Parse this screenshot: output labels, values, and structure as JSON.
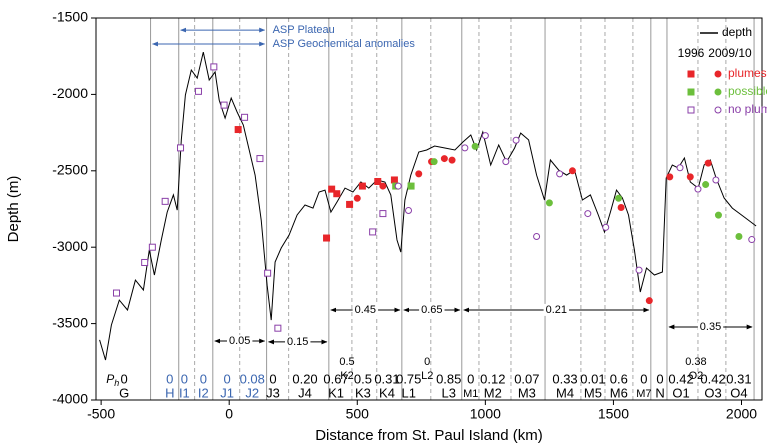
{
  "chart_data": {
    "type": "line",
    "x_label": "Distance from St. Paul Island (km)",
    "y_label": "Depth (m)",
    "xlim": [
      -520,
      2080
    ],
    "ylim": [
      -4000,
      -1500
    ],
    "xticks": [
      -500,
      0,
      500,
      1000,
      1500,
      2000
    ],
    "yticks": [
      -4000,
      -3500,
      -3000,
      -2500,
      -2000,
      -1500
    ],
    "series": [
      {
        "name": "depth",
        "color": "#000000",
        "x": [
          -506,
          -483,
          -460,
          -429,
          -397,
          -366,
          -335,
          -312,
          -292,
          -265,
          -242,
          -218,
          -203,
          -187,
          -171,
          -148,
          -125,
          -101,
          -78,
          -55,
          -39,
          -16,
          8,
          31,
          55,
          78,
          101,
          125,
          148,
          164,
          179,
          203,
          234,
          265,
          296,
          327,
          351,
          374,
          397,
          421,
          452,
          483,
          514,
          545,
          577,
          608,
          631,
          655,
          670,
          686,
          709,
          740,
          771,
          802,
          842,
          881,
          912,
          943,
          966,
          990,
          1021,
          1052,
          1083,
          1114,
          1138,
          1169,
          1200,
          1231,
          1254,
          1286,
          1317,
          1348,
          1379,
          1410,
          1441,
          1465,
          1488,
          1512,
          1535,
          1559,
          1582,
          1605,
          1629,
          1660,
          1691,
          1706,
          1730,
          1753,
          1777,
          1800,
          1831,
          1854,
          1878,
          1901,
          1932,
          1964,
          1995,
          2026,
          2057
        ],
        "values": [
          -3607,
          -3738,
          -3509,
          -3346,
          -3411,
          -3215,
          -3280,
          -3018,
          -3182,
          -2953,
          -2770,
          -2658,
          -2757,
          -2298,
          -2004,
          -1840,
          -1893,
          -1723,
          -1906,
          -1853,
          -2037,
          -2155,
          -2024,
          -2115,
          -2200,
          -2364,
          -2528,
          -2822,
          -3248,
          -3477,
          -3097,
          -3005,
          -2920,
          -2789,
          -2724,
          -2744,
          -2639,
          -2626,
          -2770,
          -2704,
          -2613,
          -2639,
          -2573,
          -2613,
          -2560,
          -2573,
          -2658,
          -2953,
          -3032,
          -2691,
          -2528,
          -2377,
          -2364,
          -2338,
          -2351,
          -2364,
          -2312,
          -2266,
          -2364,
          -2246,
          -2462,
          -2331,
          -2442,
          -2351,
          -2253,
          -2298,
          -2528,
          -2691,
          -2429,
          -2495,
          -2528,
          -2495,
          -2691,
          -2658,
          -2789,
          -2901,
          -2770,
          -2626,
          -2678,
          -2789,
          -3018,
          -3293,
          -3136,
          -3182,
          -3162,
          -2547,
          -2462,
          -2482,
          -2416,
          -2573,
          -2613,
          -2462,
          -2429,
          -2547,
          -2678,
          -2744,
          -2783,
          -2822,
          -2861
        ]
      }
    ],
    "years": [
      "1996",
      "2009/10"
    ],
    "year_markers": [
      "square",
      "circle"
    ],
    "marker_groups": [
      {
        "name": "plumes",
        "color": "#e8262a",
        "filled": true,
        "years": [
          {
            "x": [
              35,
              400,
              380,
              420,
              470,
              520,
              580,
              645
            ],
            "values": [
              -2230,
              -2620,
              -2940,
              -2650,
              -2720,
              -2600,
              -2570,
              -2560
            ]
          },
          {
            "x": [
              1720,
              1800,
              1870,
              1640,
              740,
              790,
              840,
              870,
              500,
              600,
              1340,
              1530
            ],
            "values": [
              -2540,
              -2540,
              -2450,
              -3350,
              -2520,
              -2440,
              -2420,
              -2430,
              -2680,
              -2600,
              -2500,
              -2740
            ]
          }
        ]
      },
      {
        "name": "possibles",
        "color": "#6cbf3c",
        "filled": true,
        "years": [
          {
            "x": [
              650,
              710
            ],
            "values": [
              -2600,
              -2600
            ]
          },
          {
            "x": [
              960,
              1250,
              1520,
              1860,
              1910,
              1990,
              800
            ],
            "values": [
              -2340,
              -2710,
              -2680,
              -2590,
              -2790,
              -2930,
              -2440
            ]
          }
        ]
      },
      {
        "name": "no plume",
        "color": "#8a3fa8",
        "filled": false,
        "years": [
          {
            "x": [
              -440,
              -330,
              -300,
              -250,
              -190,
              -120,
              -60,
              -20,
              60,
              120,
              150,
              190,
              560,
              600
            ],
            "values": [
              -3300,
              -3100,
              -3000,
              -2700,
              -2350,
              -1980,
              -1820,
              -2070,
              -2150,
              -2420,
              -3170,
              -3530,
              -2900,
              -2780
            ]
          },
          {
            "x": [
              660,
              1000,
              1080,
              1120,
              1200,
              1290,
              1400,
              1470,
              1600,
              1760,
              1830,
              1900,
              2040,
              920,
              700
            ],
            "values": [
              -2600,
              -2270,
              -2440,
              -2300,
              -2930,
              -2520,
              -2780,
              -2870,
              -3150,
              -2480,
              -2620,
              -2560,
              -2950,
              -2350,
              -2760
            ]
          }
        ]
      }
    ],
    "boundaries": [
      {
        "x": -307,
        "style": "solid"
      },
      {
        "x": -197,
        "style": "solid"
      },
      {
        "x": -135,
        "style": "dashed"
      },
      {
        "x": -64,
        "style": "solid"
      },
      {
        "x": 41,
        "style": "dashed"
      },
      {
        "x": 146,
        "style": "solid"
      },
      {
        "x": 232,
        "style": "dashed"
      },
      {
        "x": 389,
        "style": "solid"
      },
      {
        "x": 479,
        "style": "dashed"
      },
      {
        "x": 576,
        "style": "dashed"
      },
      {
        "x": 674,
        "style": "solid"
      },
      {
        "x": 787,
        "style": "dashed"
      },
      {
        "x": 908,
        "style": "solid"
      },
      {
        "x": 975,
        "style": "dashed"
      },
      {
        "x": 1100,
        "style": "dashed"
      },
      {
        "x": 1233,
        "style": "solid"
      },
      {
        "x": 1373,
        "style": "dashed"
      },
      {
        "x": 1467,
        "style": "dashed"
      },
      {
        "x": 1576,
        "style": "dashed"
      },
      {
        "x": 1646,
        "style": "solid"
      },
      {
        "x": 1709,
        "style": "solid"
      },
      {
        "x": 1830,
        "style": "dashed"
      },
      {
        "x": 1939,
        "style": "dashed"
      },
      {
        "x": 2049,
        "style": "solid"
      }
    ],
    "ph_label": {
      "main": "P",
      "sub": "h",
      "x": -480
    },
    "segments": [
      {
        "label": "G",
        "value": "0",
        "x": -410
      },
      {
        "label": "H",
        "value": "0",
        "x": -232,
        "color": "#3b66b0"
      },
      {
        "label": "I1",
        "value": "0",
        "x": -175,
        "color": "#3b66b0"
      },
      {
        "label": "I2",
        "value": "0",
        "x": -101,
        "color": "#3b66b0"
      },
      {
        "label": "J1",
        "value": "0",
        "x": -8,
        "color": "#3b66b0"
      },
      {
        "label": "J2",
        "value": "0.08",
        "x": 90,
        "color": "#3b66b0"
      },
      {
        "label": "J3",
        "value": "0",
        "x": 171,
        "color": "#000000"
      },
      {
        "label": "J4",
        "value": "0.20",
        "x": 296,
        "color": "#000000"
      },
      {
        "label": "K1",
        "value": "0.67",
        "x": 417
      },
      {
        "label": "K3",
        "value": "0.5",
        "x": 522
      },
      {
        "label": "K4",
        "value": "0.31",
        "x": 616
      },
      {
        "label": "L1",
        "value": "0.75",
        "x": 701
      },
      {
        "label": "L3",
        "value": "0.85",
        "x": 857
      },
      {
        "label": "M1",
        "value": "0",
        "x": 943
      },
      {
        "label": "M2",
        "value": "0.12",
        "x": 1029
      },
      {
        "label": "M3",
        "value": "0.07",
        "x": 1162
      },
      {
        "label": "M4",
        "value": "0.33",
        "x": 1311
      },
      {
        "label": "M5",
        "value": "0.01",
        "x": 1420
      },
      {
        "label": "M6",
        "value": "0.6",
        "x": 1521
      },
      {
        "label": "M7",
        "value": "0",
        "x": 1619
      },
      {
        "label": "N",
        "value": "0",
        "x": 1682
      },
      {
        "label": "O1",
        "value": "0.42",
        "x": 1764
      },
      {
        "label": "O3",
        "value": "0.42",
        "x": 1889
      },
      {
        "label": "O4",
        "value": "0.31",
        "x": 1990
      }
    ],
    "upper_segments": [
      {
        "label": "K2",
        "value": "0.5",
        "x": 460,
        "depth": -3751
      },
      {
        "label": "L2",
        "value": "0",
        "x": 773,
        "depth": -3751
      },
      {
        "label": "O2",
        "value": "0.38",
        "x": 1822,
        "depth": -3751
      }
    ],
    "spans": [
      {
        "label": "0.05",
        "x1": -64,
        "x2": 146,
        "depth": -3614
      },
      {
        "label": "0.15",
        "x1": 146,
        "x2": 389,
        "depth": -3620
      },
      {
        "label": "0.45",
        "x1": 389,
        "x2": 674,
        "depth": -3411
      },
      {
        "label": "0.65",
        "x1": 674,
        "x2": 908,
        "depth": -3411
      },
      {
        "label": "0.21",
        "x1": 908,
        "x2": 1646,
        "depth": -3411
      },
      {
        "label": "0.35",
        "x1": 1709,
        "x2": 2049,
        "depth": -3522
      }
    ],
    "annotations": [
      {
        "text": "ASP Plateau",
        "x1": -197,
        "x2": 146,
        "depth": -1579,
        "color": "#3b66b0"
      },
      {
        "text": "ASP Geochemical anomalies",
        "x1": -307,
        "x2": 146,
        "depth": -1670,
        "color": "#3b66b0"
      }
    ]
  }
}
